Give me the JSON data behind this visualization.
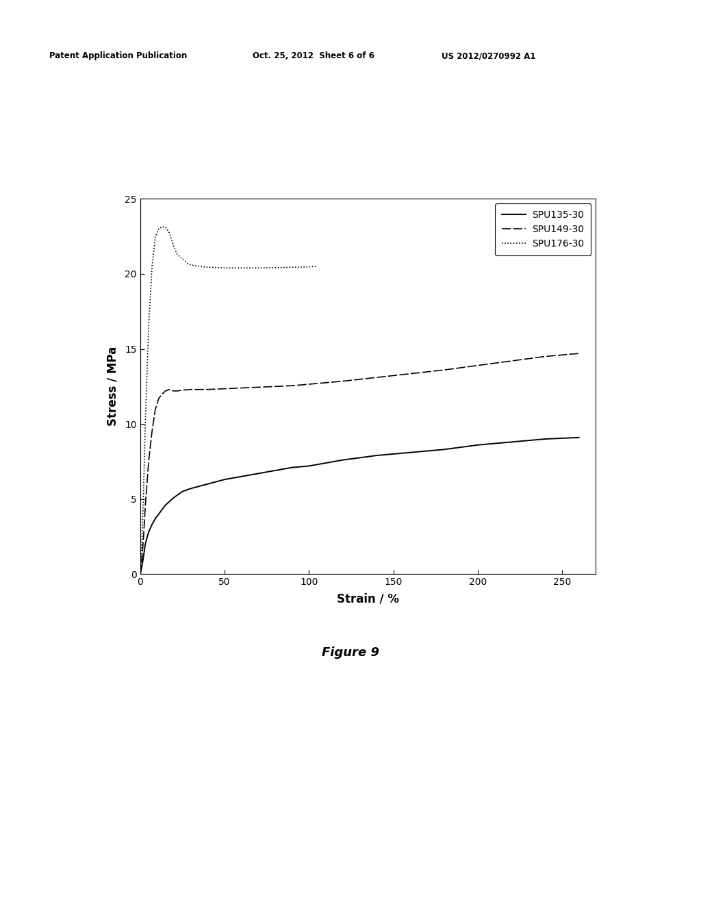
{
  "header_left": "Patent Application Publication",
  "header_mid": "Oct. 25, 2012  Sheet 6 of 6",
  "header_right": "US 2012/0270992 A1",
  "figure_label": "Figure 9",
  "xlabel": "Strain / %",
  "ylabel": "Stress / MPa",
  "xlim": [
    0,
    270
  ],
  "ylim": [
    0,
    25
  ],
  "xticks": [
    0,
    50,
    100,
    150,
    200,
    250
  ],
  "yticks": [
    0,
    5,
    10,
    15,
    20,
    25
  ],
  "legend_labels": [
    "SPU135-30",
    "SPU149-30",
    "SPU176-30"
  ],
  "background_color": "#ffffff",
  "line_color": "#000000",
  "spu135_x": [
    0,
    1,
    2,
    3,
    5,
    7,
    9,
    11,
    13,
    15,
    18,
    20,
    25,
    30,
    40,
    50,
    60,
    70,
    80,
    90,
    100,
    120,
    140,
    160,
    180,
    200,
    220,
    240,
    260
  ],
  "spu135_y": [
    0,
    0.5,
    1.2,
    2.0,
    2.8,
    3.3,
    3.7,
    4.0,
    4.3,
    4.6,
    4.9,
    5.1,
    5.5,
    5.7,
    6.0,
    6.3,
    6.5,
    6.7,
    6.9,
    7.1,
    7.2,
    7.6,
    7.9,
    8.1,
    8.3,
    8.6,
    8.8,
    9.0,
    9.1
  ],
  "spu149_x": [
    0,
    1,
    2,
    3,
    5,
    7,
    9,
    11,
    13,
    15,
    17,
    18,
    20,
    22,
    25,
    30,
    40,
    50,
    60,
    70,
    80,
    90,
    100,
    120,
    140,
    160,
    180,
    200,
    220,
    240,
    260
  ],
  "spu149_y": [
    0,
    1.0,
    2.5,
    4.5,
    7.5,
    9.5,
    11.0,
    11.7,
    12.0,
    12.2,
    12.3,
    12.25,
    12.2,
    12.2,
    12.25,
    12.3,
    12.3,
    12.35,
    12.4,
    12.45,
    12.5,
    12.55,
    12.65,
    12.85,
    13.1,
    13.35,
    13.6,
    13.9,
    14.2,
    14.5,
    14.7
  ],
  "spu176_x": [
    0,
    1,
    2,
    3,
    5,
    7,
    9,
    11,
    13,
    15,
    17,
    18,
    20,
    22,
    25,
    28,
    30,
    35,
    40,
    50,
    60,
    70,
    80,
    90,
    100,
    105
  ],
  "spu176_y": [
    0,
    2.0,
    5.5,
    10.0,
    16.5,
    20.5,
    22.5,
    23.0,
    23.15,
    23.1,
    22.8,
    22.5,
    21.8,
    21.3,
    21.0,
    20.7,
    20.6,
    20.5,
    20.45,
    20.4,
    20.4,
    20.4,
    20.42,
    20.44,
    20.47,
    20.5
  ]
}
